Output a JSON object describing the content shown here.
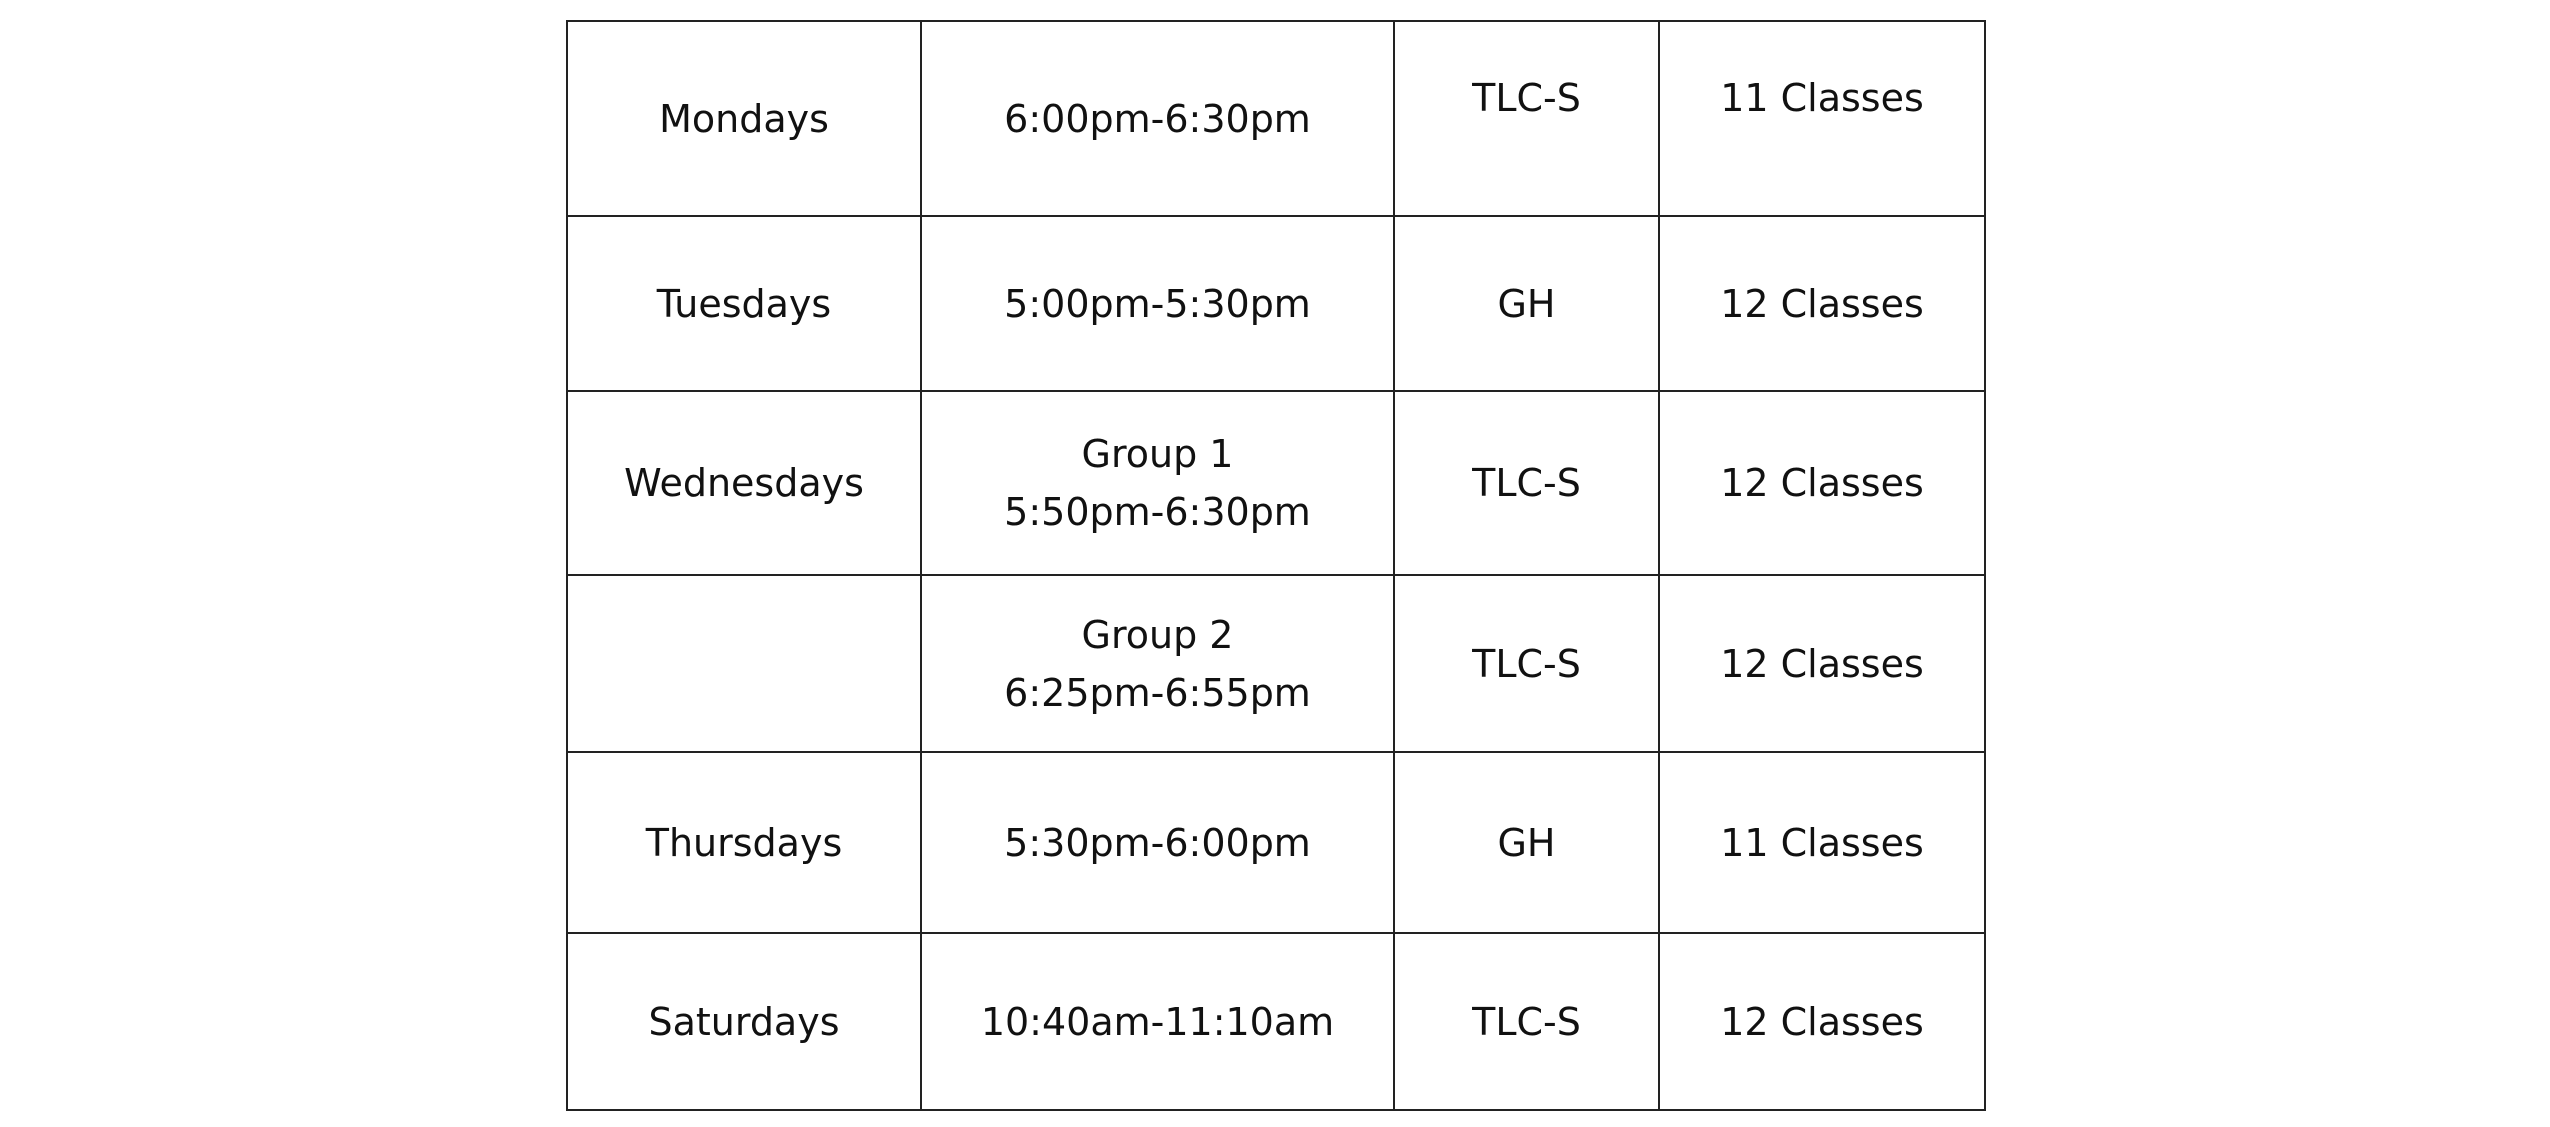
{
  "rows": [
    {
      "day": "Mondays",
      "time": [
        "6:00pm-6:30pm"
      ],
      "location": "TLC-S",
      "classes": "11 Classes"
    },
    {
      "day": "Tuesdays",
      "time": [
        "5:00pm-5:30pm"
      ],
      "location": "GH",
      "classes": "12 Classes"
    },
    {
      "day": "Wednesdays",
      "time": [
        "Group 1",
        "5:50pm-6:30pm"
      ],
      "location": "TLC-S",
      "classes": "12 Classes"
    },
    {
      "day": "",
      "time": [
        "Group 2",
        "6:25pm-6:55pm"
      ],
      "location": "TLC-S",
      "classes": "12 Classes"
    },
    {
      "day": "Thursdays",
      "time": [
        "5:30pm-6:00pm"
      ],
      "location": "GH",
      "classes": "11 Classes"
    },
    {
      "day": "Saturdays",
      "time": [
        "10:40am-11:10am"
      ],
      "location": "TLC-S",
      "classes": "12 Classes"
    }
  ]
}
